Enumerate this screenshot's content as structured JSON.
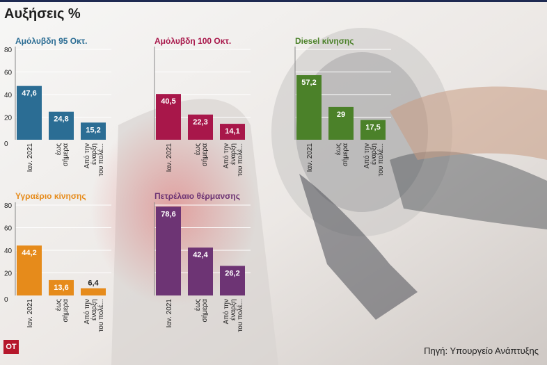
{
  "title": "Αυξήσεις %",
  "source": "Πηγή: Υπουργείο Ανάπτυξης",
  "logo": "ΟΤ",
  "colors": {
    "unleaded95": "#2b6d94",
    "unleaded100": "#a8174a",
    "diesel": "#4b8129",
    "lpg": "#e68b1b",
    "heating": "#6d3474",
    "tick": "#222222"
  },
  "chart_data": [
    {
      "type": "bar",
      "title": "Αμόλυβδη 95 Οκτ.",
      "color_key": "unleaded95",
      "categories": [
        "Ιαν. 2021",
        "έως σήμερα",
        "Από την έναρξη του πολέ..."
      ],
      "values": [
        47.6,
        24.8,
        15.2
      ],
      "labels": [
        "47,6",
        "24,8",
        "15,2"
      ],
      "yticks": [
        "0",
        "20",
        "40",
        "60",
        "80"
      ],
      "ylim": [
        0,
        80
      ]
    },
    {
      "type": "bar",
      "title": "Αμόλυβδη 100 Οκτ.",
      "color_key": "unleaded100",
      "categories": [
        "Ιαν. 2021",
        "έως σήμερα",
        "Από την έναρξη του πολέ..."
      ],
      "values": [
        40.5,
        22.3,
        14.1
      ],
      "labels": [
        "40,5",
        "22,3",
        "14,1"
      ],
      "yticks": [],
      "ylim": [
        0,
        80
      ]
    },
    {
      "type": "bar",
      "title": "Diesel κίνησης",
      "color_key": "diesel",
      "categories": [
        "Ιαν. 2021",
        "έως σήμερα",
        "Από την έναρξη του πολέ..."
      ],
      "values": [
        57.2,
        29,
        17.5
      ],
      "labels": [
        "57,2",
        "29",
        "17,5"
      ],
      "yticks": [],
      "ylim": [
        0,
        80
      ]
    },
    {
      "type": "bar",
      "title": "Υγραέριο κίνησης",
      "color_key": "lpg",
      "categories": [
        "Ιαν. 2021",
        "έως σήμερα",
        "Από την έναρξη του πολέ..."
      ],
      "values": [
        44.2,
        13.6,
        6.4
      ],
      "labels": [
        "44,2",
        "13,6",
        "6,4"
      ],
      "yticks": [
        "0",
        "20",
        "40",
        "60",
        "80"
      ],
      "ylim": [
        0,
        80
      ]
    },
    {
      "type": "bar",
      "title": "Πετρέλαιο θέρμανσης",
      "color_key": "heating",
      "categories": [
        "Ιαν. 2021",
        "έως σήμερα",
        "Από την έναρξη του πολέ..."
      ],
      "values": [
        78.6,
        42.4,
        26.2
      ],
      "labels": [
        "78,6",
        "42,4",
        "26,2"
      ],
      "yticks": [],
      "ylim": [
        0,
        80
      ]
    }
  ]
}
